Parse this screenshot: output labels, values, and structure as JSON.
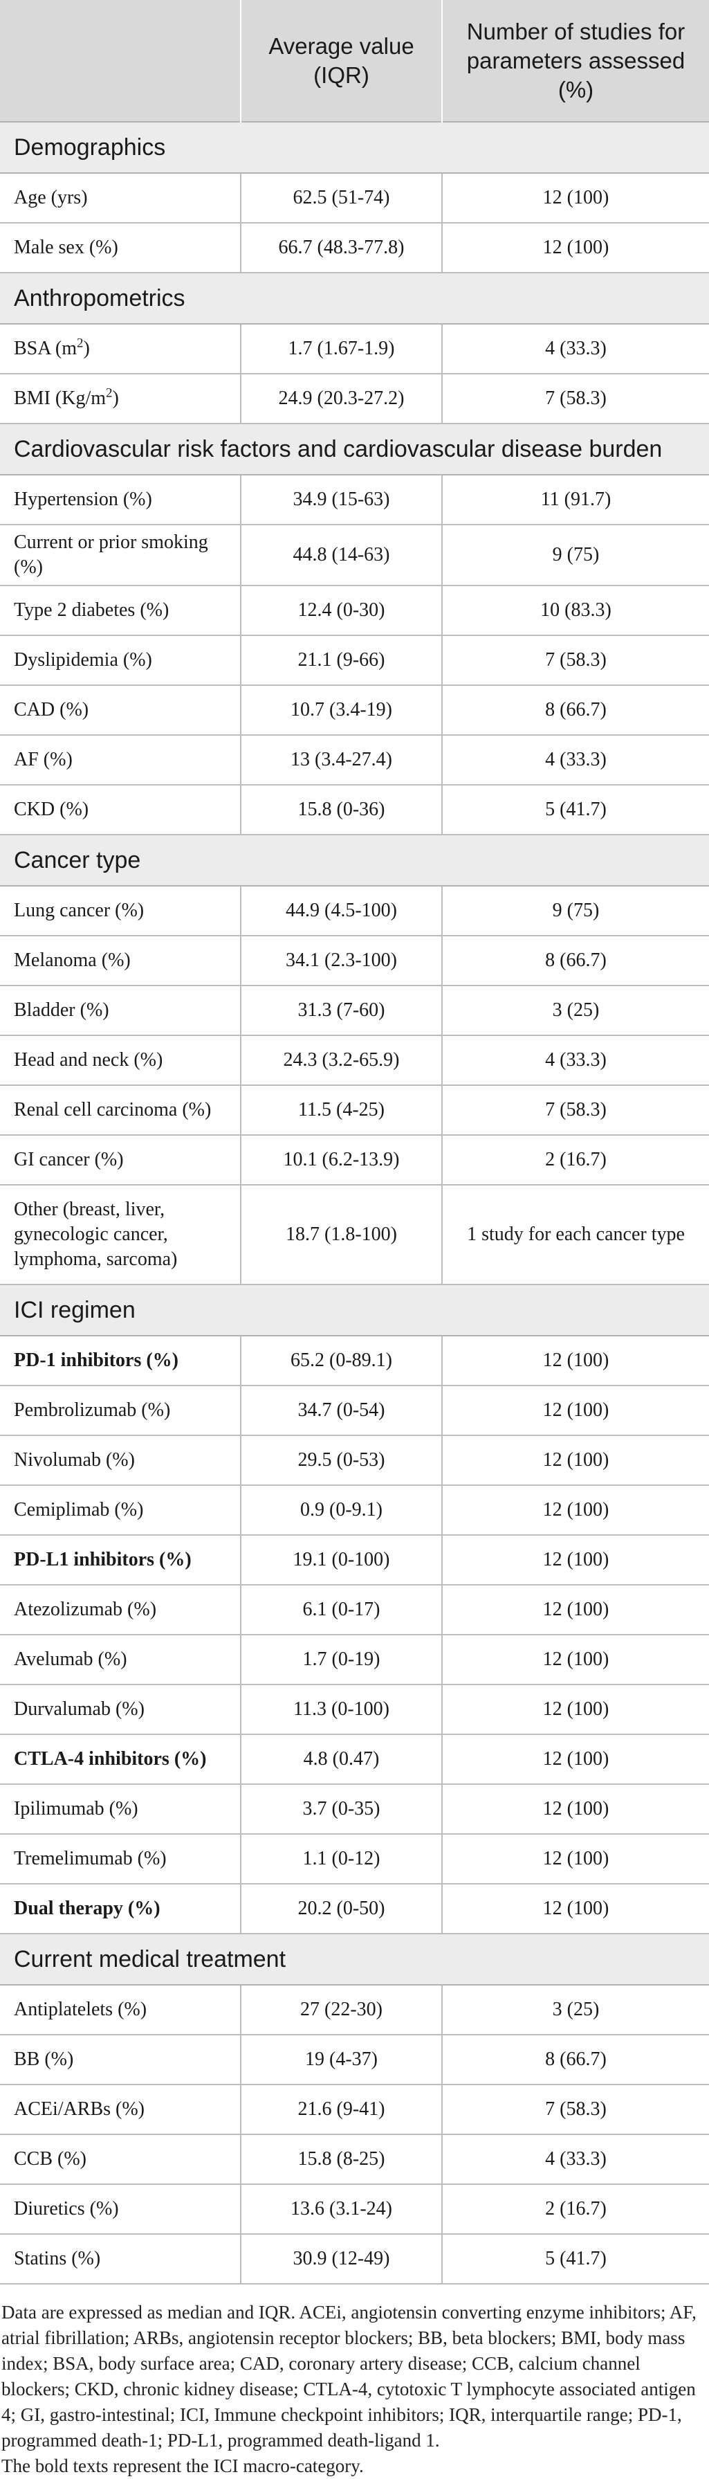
{
  "header": {
    "col2": "Average value (IQR)",
    "col3": "Number of studies for parameters assessed (%)"
  },
  "sections": [
    {
      "title": "Demographics",
      "rows": [
        {
          "label": "Age (yrs)",
          "value": "62.5 (51-74)",
          "studies": "12 (100)"
        },
        {
          "label": "Male sex (%)",
          "value": "66.7 (48.3-77.8)",
          "studies": "12 (100)"
        }
      ]
    },
    {
      "title": "Anthropometrics",
      "rows": [
        {
          "label": "BSA (m",
          "sup": "2",
          "label_tail": ")",
          "value": "1.7 (1.67-1.9)",
          "studies": "4 (33.3)"
        },
        {
          "label": "BMI (Kg/m",
          "sup": "2",
          "label_tail": ")",
          "value": "24.9 (20.3-27.2)",
          "studies": "7 (58.3)"
        }
      ]
    },
    {
      "title": "Cardiovascular risk factors and cardiovascular disease burden",
      "rows": [
        {
          "label": "Hypertension (%)",
          "value": "34.9 (15-63)",
          "studies": "11 (91.7)"
        },
        {
          "label": "Current or prior smoking (%)",
          "value": "44.8 (14-63)",
          "studies": "9 (75)"
        },
        {
          "label": "Type 2 diabetes (%)",
          "value": "12.4 (0-30)",
          "studies": "10 (83.3)"
        },
        {
          "label": "Dyslipidemia (%)",
          "value": "21.1 (9-66)",
          "studies": "7 (58.3)"
        },
        {
          "label": "CAD (%)",
          "value": "10.7 (3.4-19)",
          "studies": "8 (66.7)"
        },
        {
          "label": "AF (%)",
          "value": "13 (3.4-27.4)",
          "studies": "4 (33.3)"
        },
        {
          "label": "CKD (%)",
          "value": "15.8 (0-36)",
          "studies": "5 (41.7)"
        }
      ]
    },
    {
      "title": "Cancer type",
      "rows": [
        {
          "label": "Lung cancer (%)",
          "value": "44.9 (4.5-100)",
          "studies": "9 (75)"
        },
        {
          "label": "Melanoma (%)",
          "value": "34.1 (2.3-100)",
          "studies": "8 (66.7)"
        },
        {
          "label": "Bladder (%)",
          "value": "31.3 (7-60)",
          "studies": "3 (25)"
        },
        {
          "label": "Head and neck (%)",
          "value": "24.3 (3.2-65.9)",
          "studies": "4 (33.3)"
        },
        {
          "label": "Renal cell carcinoma (%)",
          "value": "11.5 (4-25)",
          "studies": "7 (58.3)"
        },
        {
          "label": "GI cancer (%)",
          "value": "10.1 (6.2-13.9)",
          "studies": "2 (16.7)"
        },
        {
          "label": "Other (breast, liver, gynecologic cancer, lymphoma, sarcoma)",
          "value": "18.7 (1.8-100)",
          "studies": "1 study for each cancer type"
        }
      ]
    },
    {
      "title": "ICI regimen",
      "rows": [
        {
          "label": "PD-1 inhibitors (%)",
          "value": "65.2 (0-89.1)",
          "studies": "12 (100)",
          "bold": true
        },
        {
          "label": "Pembrolizumab (%)",
          "value": "34.7 (0-54)",
          "studies": "12 (100)"
        },
        {
          "label": "Nivolumab (%)",
          "value": "29.5 (0-53)",
          "studies": "12 (100)"
        },
        {
          "label": "Cemiplimab (%)",
          "value": "0.9 (0-9.1)",
          "studies": "12 (100)"
        },
        {
          "label": "PD-L1 inhibitors (%)",
          "value": "19.1 (0-100)",
          "studies": "12 (100)",
          "bold": true
        },
        {
          "label": "Atezolizumab (%)",
          "value": "6.1 (0-17)",
          "studies": "12 (100)"
        },
        {
          "label": "Avelumab (%)",
          "value": "1.7 (0-19)",
          "studies": "12 (100)"
        },
        {
          "label": "Durvalumab (%)",
          "value": "11.3 (0-100)",
          "studies": "12 (100)"
        },
        {
          "label": "CTLA-4 inhibitors (%)",
          "value": "4.8 (0.47)",
          "studies": "12 (100)",
          "bold": true
        },
        {
          "label": "Ipilimumab (%)",
          "value": "3.7 (0-35)",
          "studies": "12 (100)"
        },
        {
          "label": "Tremelimumab (%)",
          "value": "1.1 (0-12)",
          "studies": "12 (100)"
        },
        {
          "label": "Dual therapy (%)",
          "value": "20.2 (0-50)",
          "studies": "12 (100)",
          "bold": true
        }
      ]
    },
    {
      "title": "Current medical treatment",
      "rows": [
        {
          "label": "Antiplatelets (%)",
          "value": "27 (22-30)",
          "studies": "3 (25)"
        },
        {
          "label": "BB (%)",
          "value": "19 (4-37)",
          "studies": "8 (66.7)"
        },
        {
          "label": "ACEi/ARBs (%)",
          "value": "21.6 (9-41)",
          "studies": "7 (58.3)"
        },
        {
          "label": "CCB (%)",
          "value": "15.8 (8-25)",
          "studies": "4 (33.3)"
        },
        {
          "label": "Diuretics (%)",
          "value": "13.6 (3.1-24)",
          "studies": "2 (16.7)"
        },
        {
          "label": "Statins (%)",
          "value": "30.9 (12-49)",
          "studies": "5 (41.7)"
        }
      ]
    }
  ],
  "footnotes": [
    "Data are expressed as median and IQR. ACEi, angiotensin converting enzyme inhibitors; AF, atrial fibrillation; ARBs, angiotensin receptor blockers; BB, beta blockers; BMI, body mass index; BSA, body surface area; CAD, coronary artery disease; CCB, calcium channel blockers; CKD, chronic kidney disease; CTLA-4, cytotoxic T lymphocyte associated antigen 4; GI, gastro-intestinal; ICI, Immune checkpoint inhibitors; IQR, interquartile range; PD-1, programmed death-1; PD-L1, programmed death-ligand 1.",
    "The bold texts represent the ICI macro-category."
  ]
}
